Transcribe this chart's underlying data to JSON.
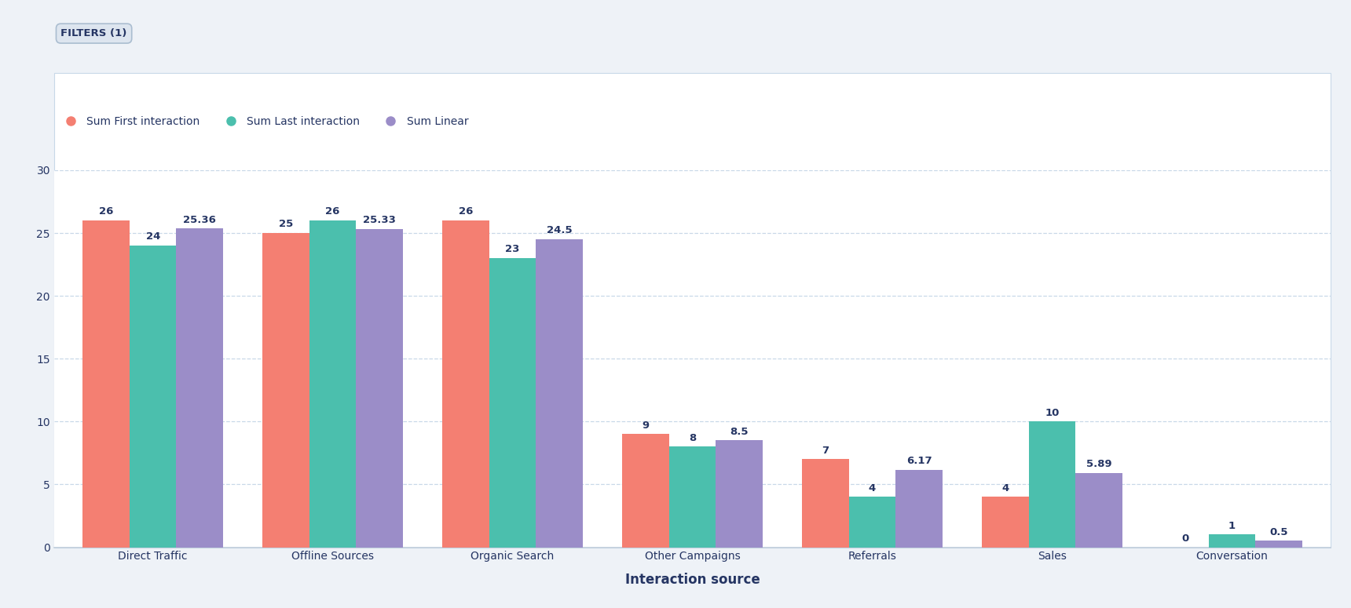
{
  "categories": [
    "Direct Traffic",
    "Offline Sources",
    "Organic Search",
    "Other Campaigns",
    "Referrals",
    "Sales",
    "Conversation"
  ],
  "first_interaction": [
    26,
    25,
    26,
    9,
    7,
    4,
    0
  ],
  "last_interaction": [
    24,
    26,
    23,
    8,
    4,
    10,
    1
  ],
  "linear": [
    25.36,
    25.33,
    24.5,
    8.5,
    6.17,
    5.89,
    0.5
  ],
  "first_color": "#F47F72",
  "last_color": "#4BBFAD",
  "linear_color": "#9B8DC8",
  "background_color": "#FFFFFF",
  "outer_background": "#EEF2F7",
  "grid_color": "#C8D8E8",
  "axis_color": "#C0CEDC",
  "text_color": "#253563",
  "label_first": "Sum First interaction",
  "label_last": "Sum Last interaction",
  "label_linear": "Sum Linear",
  "xlabel": "Interaction source",
  "ylim": [
    0,
    30
  ],
  "yticks": [
    0,
    5,
    10,
    15,
    20,
    25,
    30
  ],
  "filters_label": "FILTERS (1)",
  "title_fontsize": 11,
  "label_fontsize": 10,
  "tick_fontsize": 10,
  "bar_width": 0.26,
  "value_fontsize": 9.5
}
